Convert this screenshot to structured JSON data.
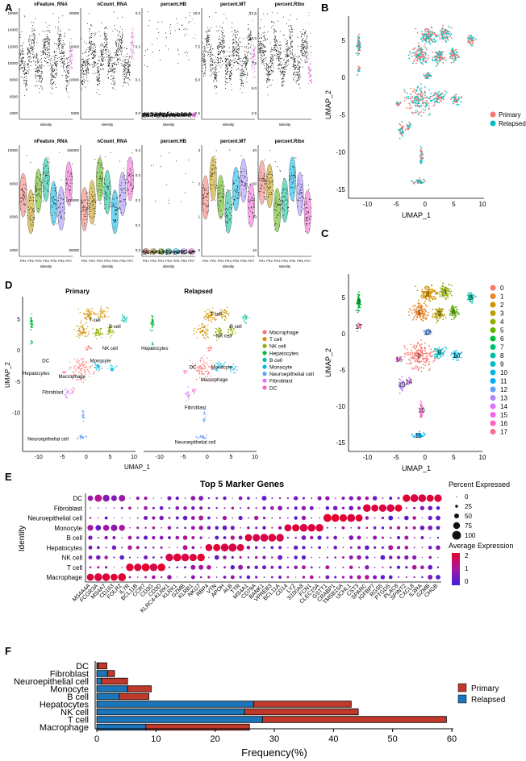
{
  "panels": {
    "A": {
      "letter": "A",
      "top_titles": [
        "nFeature_RNA",
        "nCount_RNA",
        "percent.HB",
        "percent.MT",
        "percent.Ribo"
      ],
      "bottom_titles": [
        "nFeature_RNA",
        "nCount_RNA",
        "percent.HB",
        "percent.MT",
        "percent.Ribo"
      ],
      "xlabel": "Identity",
      "top_yticks": [
        [
          "4000",
          "6000",
          "8000",
          "10000",
          "12000",
          "14000",
          "16000"
        ],
        [
          "5000",
          "10000",
          "15000",
          "20000"
        ],
        [
          "0.0",
          "0.1",
          "0.2",
          "0.3"
        ],
        [
          "2.5",
          "5.0",
          "7.5",
          "10.0"
        ],
        [
          "2.5",
          "5.0",
          "7.5",
          "10.0",
          "12.5"
        ]
      ],
      "bottom_yticks": [
        [
          "4000",
          "6000",
          "8000",
          "10000"
        ],
        [
          "50000",
          "100000",
          "150000"
        ],
        [
          "0.0",
          "0.1",
          "0.2",
          "0.3",
          "0.4"
        ],
        [
          "0",
          "1",
          "2",
          "3"
        ],
        [
          "10",
          "20",
          "30",
          "40"
        ]
      ],
      "bottom_xticks": [
        "PR1",
        "PR2",
        "PR3",
        "PR4",
        "PR5",
        "PR6",
        "PR7"
      ]
    },
    "B": {
      "letter": "B",
      "xlabel": "UMAP_1",
      "ylabel": "UMAP_2",
      "xticks": [
        "-10",
        "-5",
        "0",
        "5",
        "10"
      ],
      "yticks": [
        "5",
        "0",
        "-5",
        "-10",
        "-15"
      ],
      "legend": [
        {
          "label": "Primary",
          "color": "#F8766D"
        },
        {
          "label": "Relapsed",
          "color": "#00BFC4"
        }
      ]
    },
    "C": {
      "letter": "C",
      "xlabel": "UMAP_1",
      "ylabel": "UMAP_2",
      "xticks": [
        "-10",
        "-5",
        "0",
        "5",
        "10"
      ],
      "yticks": [
        "5",
        "0",
        "-5",
        "-10",
        "-15"
      ],
      "clusters": [
        "0",
        "1",
        "2",
        "3",
        "4",
        "5",
        "6",
        "7",
        "8",
        "9",
        "10",
        "11",
        "12",
        "13",
        "14",
        "15",
        "16",
        "17"
      ],
      "colors": [
        "#F8766D",
        "#E88526",
        "#D39200",
        "#B79F00",
        "#93AA00",
        "#5EB300",
        "#00BA38",
        "#00BF74",
        "#00C19F",
        "#00BFC4",
        "#00B9E3",
        "#00ADFA",
        "#619CFF",
        "#AE87FF",
        "#DB72FB",
        "#F564E3",
        "#FF61C3",
        "#FF6C91"
      ]
    },
    "D": {
      "letter": "D",
      "subtitles": [
        "Primary",
        "Relapsed"
      ],
      "xlabel": "UMAP_1",
      "ylabel": "UMAP_2",
      "xticks": [
        "-10",
        "-5",
        "0",
        "5",
        "10"
      ],
      "yticks": [
        "5",
        "0",
        "-5",
        "-10"
      ],
      "primary_labels": [
        "T cell",
        "B cell",
        "NK cell",
        "DC",
        "Hepatocytes",
        "Monocyte",
        "Macrophage",
        "Fibroblast",
        "Neuroepithelial cell"
      ],
      "relapsed_labels": [
        "T cell",
        "B cell",
        "NK cell",
        "Hepatocytes",
        "DC",
        "Monocyte",
        "Macrophage",
        "Fibroblast",
        "Neuroepithelial cell"
      ],
      "legend": [
        {
          "label": "Macrophage",
          "color": "#F8766D"
        },
        {
          "label": "T cell",
          "color": "#D39200"
        },
        {
          "label": "NK cell",
          "color": "#93AA00"
        },
        {
          "label": "Hepatocytes",
          "color": "#00BA38"
        },
        {
          "label": "B cell",
          "color": "#00C19F"
        },
        {
          "label": "Monocyte",
          "color": "#00B9E3"
        },
        {
          "label": "Neuroepithelial cell",
          "color": "#619CFF"
        },
        {
          "label": "Fibroblast",
          "color": "#DB72FB"
        },
        {
          "label": "DC",
          "color": "#FF61C3"
        }
      ]
    },
    "E": {
      "letter": "E",
      "title": "Top 5 Marker Genes",
      "ylabel": "Identity",
      "identities": [
        "DC",
        "Fibroblast",
        "Neuroepithelial cell",
        "Monocyte",
        "B cell",
        "Hepatocytes",
        "NK cell",
        "T cell",
        "Macrophage"
      ],
      "genes": [
        "MS4A4A",
        "FCGR3A",
        "MS4A7",
        "CD163",
        "FOLR2",
        "IL7R",
        "BCL11B",
        "CCR7",
        "CD3G",
        "CD3D",
        "KLRC4-KLRK1",
        "KLRK1",
        "GZMB",
        "KLRB1",
        "NKG7",
        "RBP4",
        "VTN",
        "APOH",
        "ALB",
        "TTR",
        "MS4A1",
        "CD79A",
        "BANK1",
        "VPREB3",
        "BCL11A",
        "CD14",
        "LYZ",
        "S100A8",
        "FCN1",
        "CLEC10A",
        "GSTT1",
        "CRABP1",
        "TMSB15A",
        "UCHL1",
        "CST3",
        "SPARC",
        "IGFBP7",
        "RGS5",
        "PTGDS",
        "PLAC8",
        "SPINT2",
        "CXCL8",
        "IL3RA",
        "GZMB",
        "CHGB"
      ],
      "legend_size_title": "Percent Expressed",
      "legend_sizes": [
        "0",
        "25",
        "50",
        "75",
        "100"
      ],
      "legend_color_title": "Average Expression",
      "legend_color_ticks": [
        "2",
        "1",
        "0"
      ]
    },
    "F": {
      "letter": "F",
      "xlabel": "Frequency(%)",
      "legend": [
        {
          "label": "Primary",
          "color": "#C0392B"
        },
        {
          "label": "Relapsed",
          "color": "#1B75BB"
        }
      ]
    }
  },
  "chart_data": [
    {
      "type": "bar",
      "orientation": "horizontal",
      "stacked": true,
      "categories": [
        "DC",
        "Fibroblast",
        "Neuroepithelial cell",
        "Monocyte",
        "B cell",
        "Hepatocytes",
        "NK cell",
        "T cell",
        "Macrophage"
      ],
      "series": [
        {
          "name": "Relapsed",
          "values": [
            0.2,
            1.8,
            0.8,
            5.2,
            3.8,
            26.5,
            25.0,
            28.0,
            8.3
          ]
        },
        {
          "name": "Primary",
          "values": [
            1.5,
            1.2,
            4.4,
            4.0,
            5.0,
            16.5,
            19.2,
            31.1,
            17.5
          ]
        }
      ],
      "xlabel": "Frequency(%)",
      "ylabel": "",
      "xlim": [
        0,
        60
      ],
      "xticks": [
        0,
        10,
        20,
        30,
        40,
        50,
        60
      ]
    }
  ]
}
